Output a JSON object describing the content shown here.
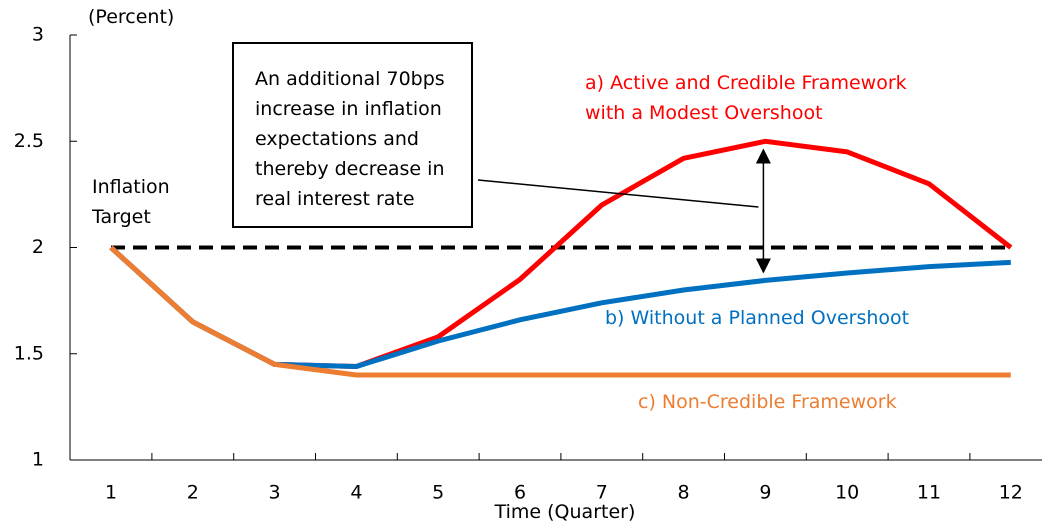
{
  "chart_data": {
    "type": "line",
    "y_axis_label": "(Percent)",
    "x_axis_label": "Time (Quarter)",
    "annotation": "An additional 70bps increase in inflation expectations and thereby decrease in real interest rate",
    "categories": [
      "1",
      "2",
      "3",
      "4",
      "5",
      "6",
      "7",
      "8",
      "9",
      "10",
      "11",
      "12"
    ],
    "series": [
      {
        "name": "Inflation Target",
        "color": "#000000",
        "dashed": true,
        "values": [
          2,
          2,
          2,
          2,
          2,
          2,
          2,
          2,
          2,
          2,
          2,
          2
        ]
      },
      {
        "name": "a) Active and Credible Framework with a Modest Overshoot",
        "color": "#ff0000",
        "values": [
          2,
          1.65,
          1.45,
          1.44,
          1.58,
          1.85,
          2.2,
          2.42,
          2.5,
          2.45,
          2.3,
          2.0
        ]
      },
      {
        "name": "b) Without a Planned Overshoot",
        "color": "#0070c0",
        "values": [
          2,
          1.65,
          1.45,
          1.44,
          1.56,
          1.66,
          1.74,
          1.8,
          1.845,
          1.88,
          1.91,
          1.93
        ]
      },
      {
        "name": "c) Non-Credible Framework",
        "color": "#ed7d31",
        "values": [
          2,
          1.65,
          1.45,
          1.4,
          1.4,
          1.4,
          1.4,
          1.4,
          1.4,
          1.4,
          1.4,
          1.4
        ]
      }
    ],
    "ylim": [
      1,
      3
    ],
    "yticks": [
      1,
      1.5,
      2,
      2.5,
      3
    ],
    "grid": false
  }
}
